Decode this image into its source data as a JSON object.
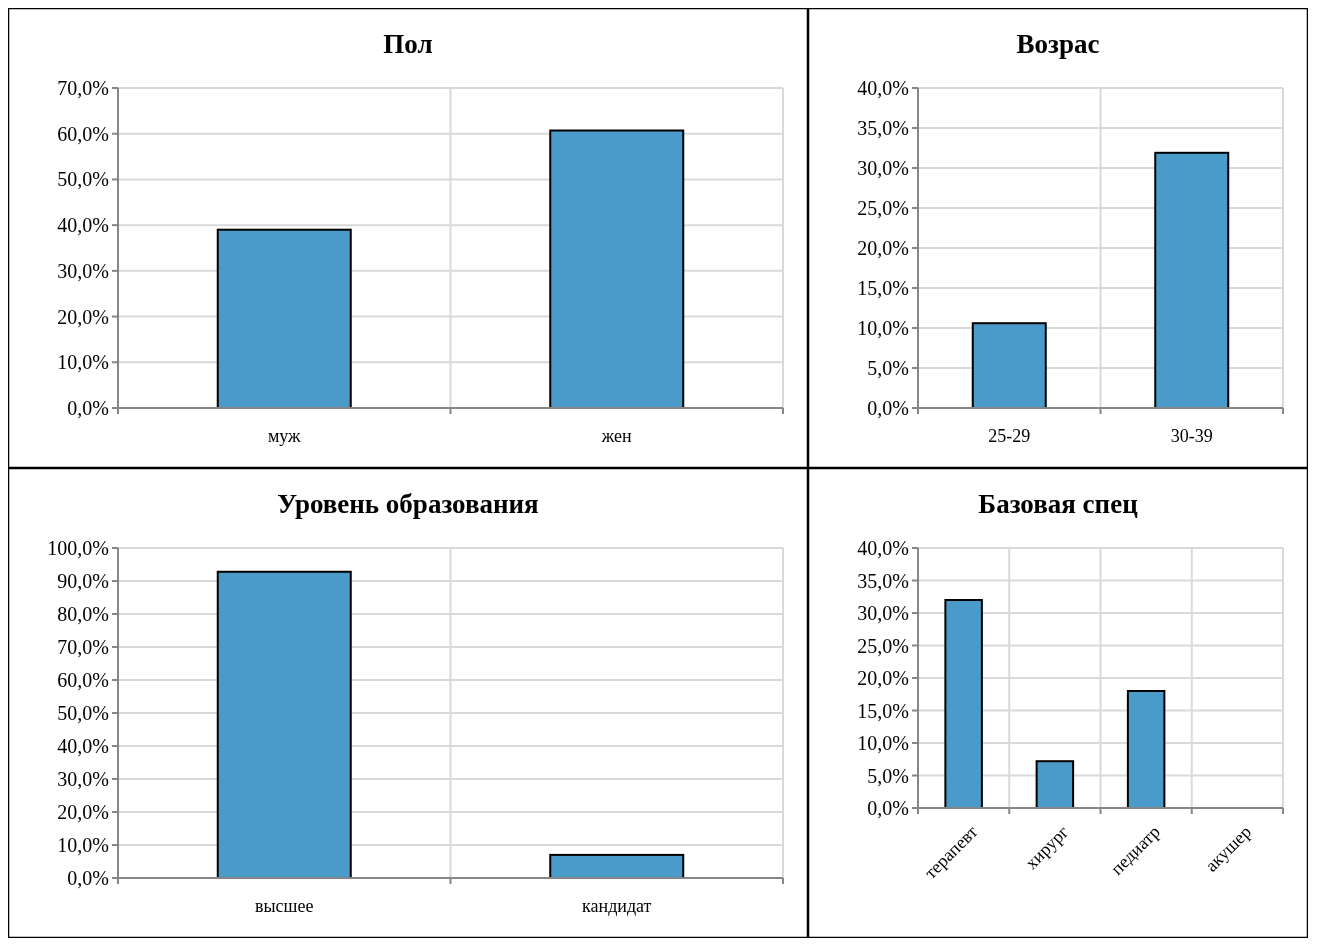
{
  "chart_data": [
    {
      "type": "bar",
      "title": "Пол",
      "categories": [
        "муж",
        "жен"
      ],
      "values": [
        39.0,
        60.7
      ],
      "color": "#4a9bc9",
      "ylim": [
        0,
        70
      ],
      "yticks": [
        {
          "value": 0,
          "label": "0,0%"
        },
        {
          "value": 10,
          "label": "10,0%"
        },
        {
          "value": 20,
          "label": "20,0%"
        },
        {
          "value": 30,
          "label": "30,0%"
        },
        {
          "value": 40,
          "label": "40,0%"
        },
        {
          "value": 50,
          "label": "50,0%"
        },
        {
          "value": 60,
          "label": "60,0%"
        },
        {
          "value": 70,
          "label": "70,0%"
        }
      ],
      "grid": true
    },
    {
      "type": "bar",
      "title": "Возрас",
      "categories": [
        "25-29",
        "30-39"
      ],
      "values": [
        10.6,
        31.9
      ],
      "color": "#4a9bc9",
      "ylim": [
        0,
        40
      ],
      "yticks": [
        {
          "value": 0,
          "label": "0,0%"
        },
        {
          "value": 5,
          "label": "5,0%"
        },
        {
          "value": 10,
          "label": "10,0%"
        },
        {
          "value": 15,
          "label": "15,0%"
        },
        {
          "value": 20,
          "label": "20,0%"
        },
        {
          "value": 25,
          "label": "25,0%"
        },
        {
          "value": 30,
          "label": "30,0%"
        },
        {
          "value": 35,
          "label": "35,0%"
        },
        {
          "value": 40,
          "label": "40,0%"
        }
      ],
      "grid": true
    },
    {
      "type": "bar",
      "title": "Уровень образования",
      "categories": [
        "высшее",
        "кандидат"
      ],
      "values": [
        92.8,
        7.0
      ],
      "color": "#4a9bc9",
      "ylim": [
        0,
        100
      ],
      "yticks": [
        {
          "value": 0,
          "label": "0,0%"
        },
        {
          "value": 10,
          "label": "10,0%"
        },
        {
          "value": 20,
          "label": "20,0%"
        },
        {
          "value": 30,
          "label": "30,0%"
        },
        {
          "value": 40,
          "label": "40,0%"
        },
        {
          "value": 50,
          "label": "50,0%"
        },
        {
          "value": 60,
          "label": "60,0%"
        },
        {
          "value": 70,
          "label": "70,0%"
        },
        {
          "value": 80,
          "label": "80,0%"
        },
        {
          "value": 90,
          "label": "90,0%"
        },
        {
          "value": 100,
          "label": "100,0%"
        }
      ],
      "grid": true
    },
    {
      "type": "bar",
      "title": "Базовая спец",
      "categories": [
        "терапевт",
        "хирург",
        "педиатр",
        "акушер"
      ],
      "values": [
        32.0,
        7.2,
        18.0,
        null
      ],
      "color": "#4a9bc9",
      "ylim": [
        0,
        40
      ],
      "yticks": [
        {
          "value": 0,
          "label": "0,0%"
        },
        {
          "value": 5,
          "label": "5,0%"
        },
        {
          "value": 10,
          "label": "10,0%"
        },
        {
          "value": 15,
          "label": "15,0%"
        },
        {
          "value": 20,
          "label": "20,0%"
        },
        {
          "value": 25,
          "label": "25,0%"
        },
        {
          "value": 30,
          "label": "30,0%"
        },
        {
          "value": 35,
          "label": "35,0%"
        },
        {
          "value": 40,
          "label": "40,0%"
        }
      ],
      "grid": true
    }
  ]
}
